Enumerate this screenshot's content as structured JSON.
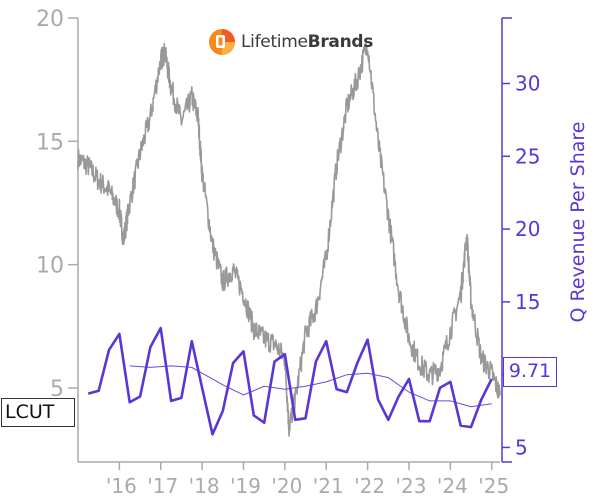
{
  "logo": {
    "brand": "Lifetime",
    "brand_bold": "Brands"
  },
  "ticker": "LCUT",
  "last_value_label": "9.71",
  "colors": {
    "price": "#999999",
    "revenue": "#5b35d5",
    "moving_avg": "#5b35d5",
    "axis_left": "#aaaaaa"
  },
  "chart_data": {
    "type": "line",
    "title": "",
    "ylabel_left": "",
    "ylabel_right": "Q Revenue Per Share",
    "y_left_ticks": [
      "5",
      "10",
      "15",
      "20"
    ],
    "y_left_range": [
      2.0,
      20.0
    ],
    "y_right_ticks": [
      "5",
      "10",
      "15",
      "20",
      "25",
      "30"
    ],
    "y_right_range": [
      4.0,
      34.5
    ],
    "x_range": [
      2015.0,
      2025.2
    ],
    "x_ticks": [
      {
        "label": "'16",
        "year": 2016
      },
      {
        "label": "'17",
        "year": 2017
      },
      {
        "label": "'18",
        "year": 2018
      },
      {
        "label": "'19",
        "year": 2019
      },
      {
        "label": "'20",
        "year": 2020
      },
      {
        "label": "'21",
        "year": 2021
      },
      {
        "label": "'22",
        "year": 2022
      },
      {
        "label": "'23",
        "year": 2023
      },
      {
        "label": "'24",
        "year": 2024
      },
      {
        "label": "'25",
        "year": 2025
      }
    ],
    "series": [
      {
        "name": "LCUT",
        "axis": "left",
        "x": [
          2015.0,
          2015.25,
          2015.5,
          2015.75,
          2016.0,
          2016.1,
          2016.25,
          2016.5,
          2016.75,
          2017.0,
          2017.1,
          2017.25,
          2017.5,
          2017.75,
          2017.9,
          2018.0,
          2018.25,
          2018.5,
          2018.75,
          2019.0,
          2019.25,
          2019.5,
          2019.75,
          2020.0,
          2020.1,
          2020.25,
          2020.5,
          2020.75,
          2021.0,
          2021.25,
          2021.5,
          2021.75,
          2022.0,
          2022.25,
          2022.5,
          2022.75,
          2023.0,
          2023.25,
          2023.5,
          2023.75,
          2024.0,
          2024.25,
          2024.4,
          2024.5,
          2024.75,
          2025.0,
          2025.2
        ],
        "values": [
          14.3,
          14.0,
          13.4,
          13.0,
          12.2,
          11.0,
          12.5,
          14.5,
          16.0,
          18.3,
          18.6,
          17.2,
          15.8,
          16.8,
          16.0,
          13.7,
          10.8,
          9.3,
          9.8,
          8.8,
          7.4,
          7.0,
          6.8,
          6.2,
          3.4,
          4.5,
          7.2,
          8.2,
          10.3,
          14.0,
          16.4,
          17.5,
          19.0,
          15.0,
          12.0,
          9.0,
          7.0,
          6.0,
          5.5,
          5.8,
          7.3,
          8.8,
          11.2,
          8.5,
          6.2,
          5.6,
          4.7
        ]
      },
      {
        "name": "Q Revenue Per Share",
        "axis": "right",
        "x": [
          2015.25,
          2015.5,
          2015.75,
          2016.0,
          2016.25,
          2016.5,
          2016.75,
          2017.0,
          2017.25,
          2017.5,
          2017.75,
          2018.0,
          2018.25,
          2018.5,
          2018.75,
          2019.0,
          2019.25,
          2019.5,
          2019.75,
          2020.0,
          2020.25,
          2020.5,
          2020.75,
          2021.0,
          2021.25,
          2021.5,
          2021.75,
          2022.0,
          2022.25,
          2022.5,
          2022.75,
          2023.0,
          2023.25,
          2023.5,
          2023.75,
          2024.0,
          2024.25,
          2024.5,
          2024.75,
          2025.0
        ],
        "values": [
          8.7,
          8.9,
          11.7,
          12.8,
          8.1,
          8.5,
          11.9,
          13.2,
          8.2,
          8.4,
          12.3,
          9.1,
          5.9,
          7.5,
          10.8,
          11.6,
          7.2,
          6.7,
          10.9,
          11.4,
          6.9,
          7.0,
          10.9,
          12.3,
          9.0,
          8.8,
          10.8,
          12.4,
          8.3,
          6.9,
          8.5,
          9.7,
          6.8,
          6.8,
          9.1,
          9.5,
          6.5,
          6.4,
          8.3,
          9.71
        ]
      },
      {
        "name": "Moving average",
        "axis": "right",
        "x": [
          2016.25,
          2016.75,
          2017.25,
          2017.75,
          2018.0,
          2018.5,
          2019.0,
          2019.5,
          2020.0,
          2020.5,
          2021.0,
          2021.5,
          2022.0,
          2022.5,
          2023.0,
          2023.5,
          2024.0,
          2024.5,
          2025.0
        ],
        "values": [
          10.6,
          10.5,
          10.6,
          10.5,
          10.1,
          9.3,
          8.6,
          9.2,
          9.0,
          9.2,
          9.5,
          10.0,
          10.1,
          9.8,
          8.8,
          8.2,
          8.2,
          7.8,
          8.0
        ]
      }
    ],
    "last_value": 9.71
  }
}
